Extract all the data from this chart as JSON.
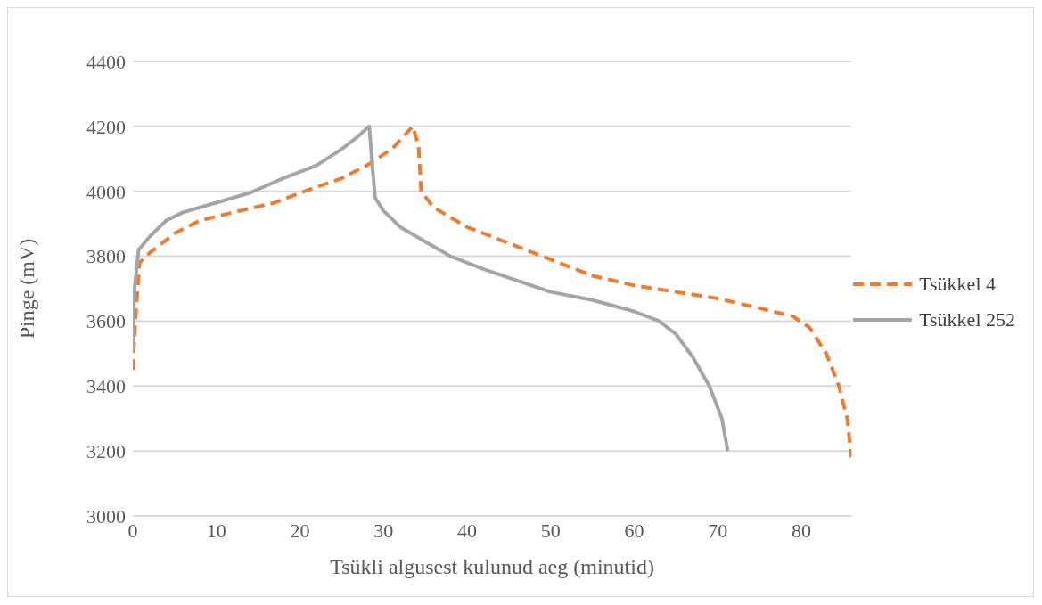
{
  "chart_data": {
    "type": "line",
    "xlabel": "Tsükli algusest kulunud aeg (minutid)",
    "ylabel": "Pinge (mV)",
    "xlim": [
      0,
      86
    ],
    "xticks": [
      0,
      10,
      20,
      30,
      40,
      50,
      60,
      70,
      80
    ],
    "ylim": [
      3000,
      4400
    ],
    "yticks": [
      3000,
      3200,
      3400,
      3600,
      3800,
      4000,
      4200,
      4400
    ],
    "grid": "y",
    "legend": "right",
    "marker": "none",
    "series": [
      {
        "name": "Tsükkel 4",
        "color": "#ed7d31",
        "line_style": "dashed",
        "x": [
          0,
          0.3,
          0.8,
          2,
          5,
          8,
          12,
          17,
          20,
          25,
          28,
          31,
          33.5,
          34.2,
          34.5,
          36,
          40,
          45,
          50,
          55,
          60,
          65,
          70,
          75,
          79,
          81,
          83,
          84.5,
          85.5,
          86
        ],
        "values": [
          3450,
          3600,
          3780,
          3810,
          3870,
          3910,
          3935,
          3965,
          3995,
          4040,
          4080,
          4130,
          4200,
          4140,
          4000,
          3950,
          3890,
          3840,
          3790,
          3740,
          3710,
          3690,
          3670,
          3640,
          3615,
          3580,
          3500,
          3400,
          3300,
          3180
        ]
      },
      {
        "name": "Tsükkel 252",
        "color": "#a5a5a5",
        "line_style": "solid",
        "x": [
          0,
          0.2,
          0.7,
          2,
          4,
          6,
          10,
          14,
          18,
          22,
          25,
          27,
          28.3,
          28.6,
          29,
          30,
          32,
          35,
          38,
          42,
          46,
          50,
          55,
          60,
          63,
          65,
          67,
          69,
          70.5,
          71.2
        ],
        "values": [
          3510,
          3700,
          3820,
          3860,
          3910,
          3935,
          3965,
          3995,
          4040,
          4080,
          4130,
          4170,
          4200,
          4100,
          3980,
          3940,
          3890,
          3845,
          3800,
          3760,
          3725,
          3690,
          3665,
          3630,
          3600,
          3560,
          3490,
          3400,
          3300,
          3200
        ]
      }
    ]
  }
}
